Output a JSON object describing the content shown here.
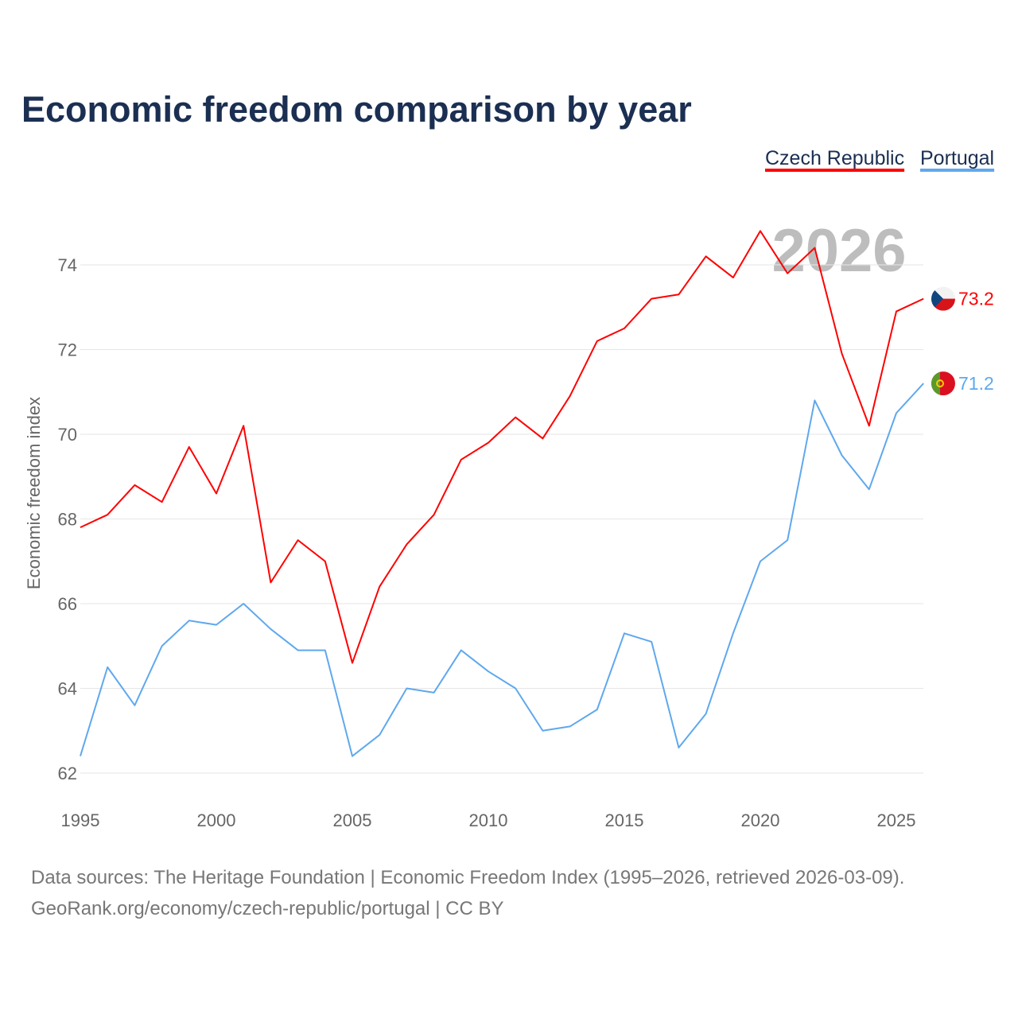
{
  "chart_data": {
    "type": "line",
    "title": "Economic freedom comparison by year",
    "xlabel": "",
    "ylabel": "Economic freedom index",
    "watermark_year": "2026",
    "x": [
      1995,
      1996,
      1997,
      1998,
      1999,
      2000,
      2001,
      2002,
      2003,
      2004,
      2005,
      2006,
      2007,
      2008,
      2009,
      2010,
      2011,
      2012,
      2013,
      2014,
      2015,
      2016,
      2017,
      2018,
      2019,
      2020,
      2021,
      2022,
      2023,
      2024,
      2025,
      2026
    ],
    "xticks": [
      1995,
      2000,
      2005,
      2010,
      2015,
      2020,
      2025
    ],
    "xtick_labels": [
      "1995",
      "2000",
      "2005",
      "2010",
      "2015",
      "2020",
      "2025"
    ],
    "xlim": [
      1995,
      2026
    ],
    "yticks": [
      62,
      64,
      66,
      68,
      70,
      72,
      74
    ],
    "ytick_labels": [
      "62",
      "64",
      "66",
      "68",
      "70",
      "72",
      "74"
    ],
    "ylim": [
      62,
      75
    ],
    "grid": true,
    "legend_placement": "top-right",
    "series": [
      {
        "name": "Czech Republic",
        "color": "#ff0000",
        "end_label": "73.2",
        "flag": "czech-flag",
        "values": [
          67.8,
          68.1,
          68.8,
          68.4,
          69.7,
          68.6,
          70.2,
          66.5,
          67.5,
          67.0,
          64.6,
          66.4,
          67.4,
          68.1,
          69.4,
          69.8,
          70.4,
          69.9,
          70.9,
          72.2,
          72.5,
          73.2,
          73.3,
          74.2,
          73.7,
          74.8,
          73.8,
          74.4,
          71.9,
          70.2,
          72.9,
          73.2
        ]
      },
      {
        "name": "Portugal",
        "color": "#5fa8ee",
        "end_label": "71.2",
        "flag": "portugal-flag",
        "values": [
          62.4,
          64.5,
          63.6,
          65.0,
          65.6,
          65.5,
          66.0,
          65.4,
          64.9,
          64.9,
          62.4,
          62.9,
          64.0,
          63.9,
          64.9,
          64.4,
          64.0,
          63.0,
          63.1,
          63.5,
          65.3,
          65.1,
          62.6,
          63.4,
          65.3,
          67.0,
          67.5,
          70.8,
          69.5,
          68.7,
          70.5,
          71.2
        ]
      }
    ]
  },
  "footer": {
    "line1": "Data sources: The Heritage Foundation | Economic Freedom Index (1995–2026, retrieved 2026-03-09).",
    "line2": "GeoRank.org/economy/czech-republic/portugal | CC BY"
  }
}
